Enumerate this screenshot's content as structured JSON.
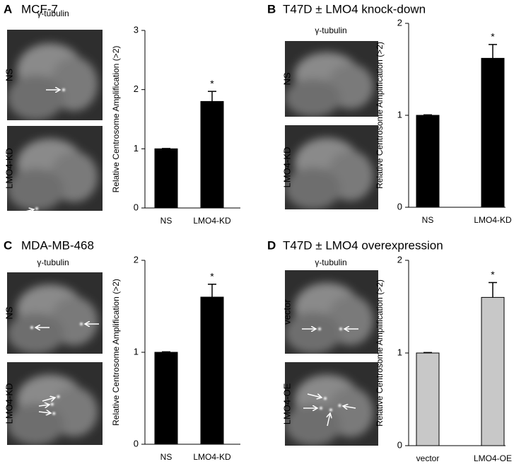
{
  "chart_data": [
    {
      "type": "bar",
      "panel": "A",
      "title": "MCF-7",
      "image_title": "γ-tubulin",
      "image_labels": [
        "NS",
        "LMO4-KD"
      ],
      "ylabel": "Relative Centrosome Amplification (>2)",
      "categories": [
        "NS",
        "LMO4-KD"
      ],
      "values": [
        1.0,
        1.8
      ],
      "errors": [
        0.005,
        0.17
      ],
      "color": "#000000",
      "ylim": [
        0,
        3
      ],
      "yticks": [
        0,
        1,
        2,
        3
      ],
      "annotation": "*"
    },
    {
      "type": "bar",
      "panel": "B",
      "title": "T47D ± LMO4 knock-down",
      "image_title": "γ-tubulin",
      "image_labels": [
        "NS",
        "LMO4-KD"
      ],
      "ylabel": "Relative Centrosome Amplification (>2)",
      "categories": [
        "NS",
        "LMO4-KD"
      ],
      "values": [
        1.0,
        1.62
      ],
      "errors": [
        0.005,
        0.15
      ],
      "color": "#000000",
      "ylim": [
        0,
        2
      ],
      "yticks": [
        0,
        1,
        2
      ],
      "annotation": "*"
    },
    {
      "type": "bar",
      "panel": "C",
      "title": "MDA-MB-468",
      "image_title": "γ-tubulin",
      "image_labels": [
        "NS",
        "LMO4-KD"
      ],
      "ylabel": "Relative Centrosome Amplification (>2)",
      "categories": [
        "NS",
        "LMO4-KD"
      ],
      "values": [
        1.0,
        1.6
      ],
      "errors": [
        0.005,
        0.14
      ],
      "color": "#000000",
      "ylim": [
        0,
        2
      ],
      "yticks": [
        0,
        1,
        2
      ],
      "annotation": "*"
    },
    {
      "type": "bar",
      "panel": "D",
      "title": "T47D ± LMO4 overexpression",
      "image_title": "γ-tubulin",
      "image_labels": [
        "vector",
        "LMO4-OE"
      ],
      "ylabel": "Relative Centrosome Amplification (>2)",
      "categories": [
        "vector",
        "LMO4-OE"
      ],
      "values": [
        1.0,
        1.6
      ],
      "errors": [
        0.005,
        0.16
      ],
      "color": "#c8c8c8",
      "ylim": [
        0,
        2
      ],
      "yticks": [
        0,
        1,
        2
      ],
      "annotation": "*"
    }
  ]
}
